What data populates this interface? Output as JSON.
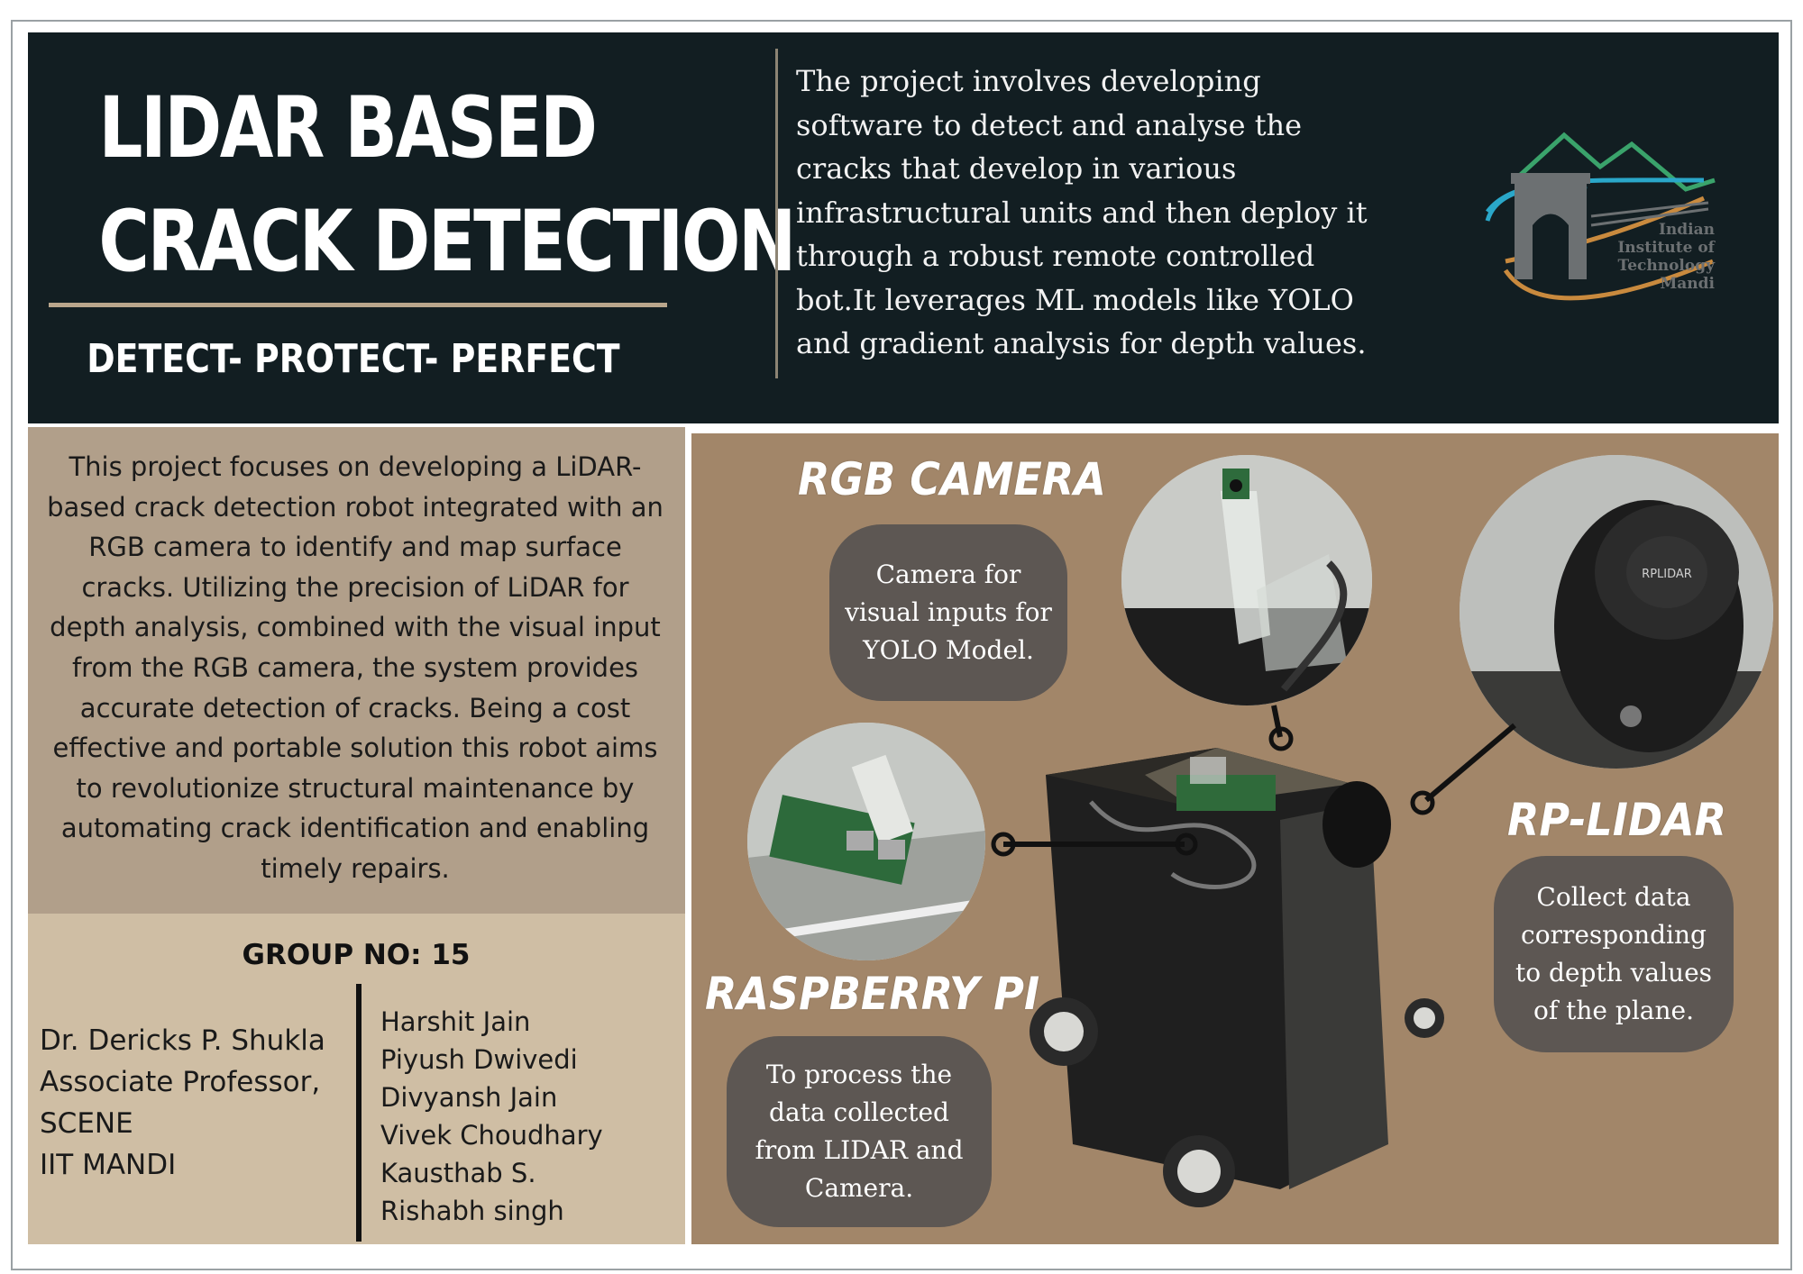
{
  "header": {
    "title_line1": "LIDAR BASED",
    "title_line2": "CRACK DETECTION",
    "tagline": "DETECT- PROTECT- PERFECT",
    "description": "The project involves developing software to detect and analyse the cracks that develop in various infrastructural units and then deploy it through a robust remote controlled bot.It leverages ML models like YOLO and gradient analysis for depth values."
  },
  "logo": {
    "line1": "Indian",
    "line2": "Institute of",
    "line3": "Technology",
    "line4": "Mandi",
    "icon": "iit-mandi-logo"
  },
  "summary": {
    "text": "This project focuses on developing a LiDAR-based crack detection robot integrated with an RGB camera to identify and map surface cracks. Utilizing the precision of LiDAR for depth analysis, combined with the visual input from the RGB camera, the system provides accurate detection of cracks. Being a cost effective and portable solution this robot aims to revolutionize structural maintenance by automating crack identification and enabling timely repairs."
  },
  "team": {
    "group_label": "GROUP NO: 15",
    "supervisor": [
      "Dr. Dericks P. Shukla",
      "Associate Professor,",
      "SCENE",
      "IIT MANDI"
    ],
    "members": [
      "Harshit Jain",
      "Piyush Dwivedi",
      "Divyansh Jain",
      "Vivek Choudhary",
      "Kausthab S.",
      "Rishabh singh"
    ]
  },
  "components": {
    "camera": {
      "label": "RGB CAMERA",
      "description": "Camera for visual inputs for YOLO Model."
    },
    "lidar": {
      "label": "RP-LIDAR",
      "description": "Collect data corresponding to depth values of the plane.",
      "device_marking": "RPLIDAR"
    },
    "raspberry": {
      "label": "RASPBERRY PI",
      "description": "To process the data collected from LIDAR and Camera."
    }
  },
  "colors": {
    "header_bg": "#121e22",
    "accent_rule": "#b9a68c",
    "summary_bg": "#b19f8a",
    "team_bg": "#cfbea4",
    "photo_bg": "#a28669",
    "bubble_bg": "#5d5753"
  }
}
